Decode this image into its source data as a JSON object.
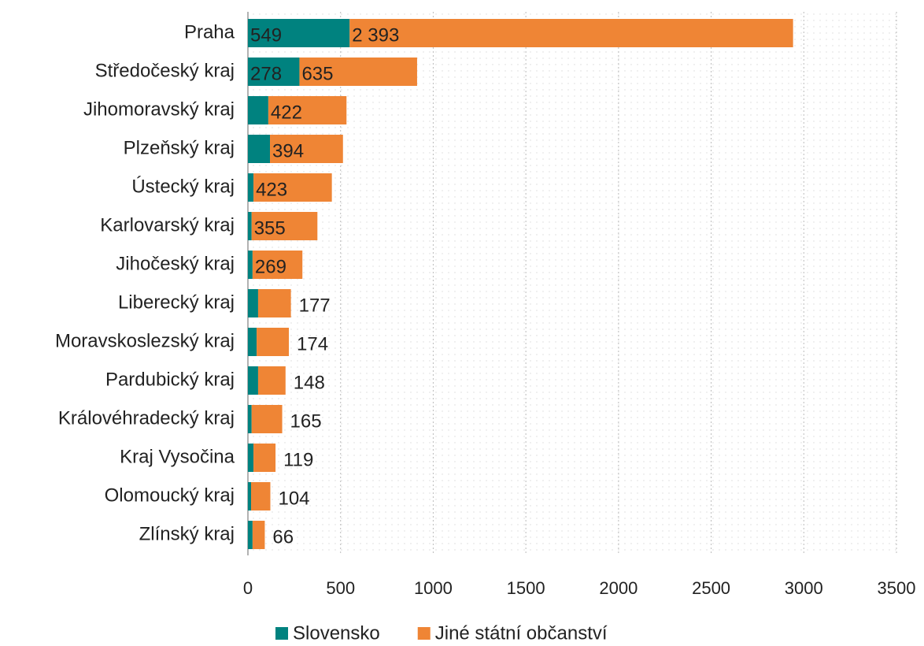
{
  "chart_data": {
    "type": "bar",
    "orientation": "horizontal",
    "stacked": true,
    "categories": [
      "Praha",
      "Středočeský kraj",
      "Jihomoravský kraj",
      "Plzeňský kraj",
      "Ústecký kraj",
      "Karlovarský kraj",
      "Jihočeský kraj",
      "Liberecký kraj",
      "Moravskoslezský kraj",
      "Pardubický kraj",
      "Královéhradecký kraj",
      "Kraj Vysočina",
      "Olomoucký kraj",
      "Zlínský kraj"
    ],
    "series": [
      {
        "name": "Slovensko",
        "color": "#00827f",
        "values": [
          549,
          278,
          110,
          119,
          30,
          20,
          25,
          55,
          47,
          55,
          20,
          30,
          17,
          25
        ],
        "value_labels": [
          "549",
          "278",
          null,
          null,
          null,
          null,
          null,
          null,
          null,
          null,
          null,
          null,
          null,
          null
        ]
      },
      {
        "name": "Jiné státní občanství",
        "color": "#ef8535",
        "values": [
          2393,
          635,
          422,
          394,
          423,
          355,
          269,
          177,
          174,
          148,
          165,
          119,
          104,
          66
        ],
        "value_labels": [
          "2 393",
          "635",
          "422",
          "394",
          "423",
          "355",
          "269",
          "177",
          "174",
          "148",
          "165",
          "119",
          "104",
          "66"
        ]
      }
    ],
    "xlim": [
      0,
      3500
    ],
    "xticks": [
      0,
      500,
      1000,
      1500,
      2000,
      2500,
      3000,
      3500
    ],
    "grid": true,
    "legend": "bottom"
  }
}
